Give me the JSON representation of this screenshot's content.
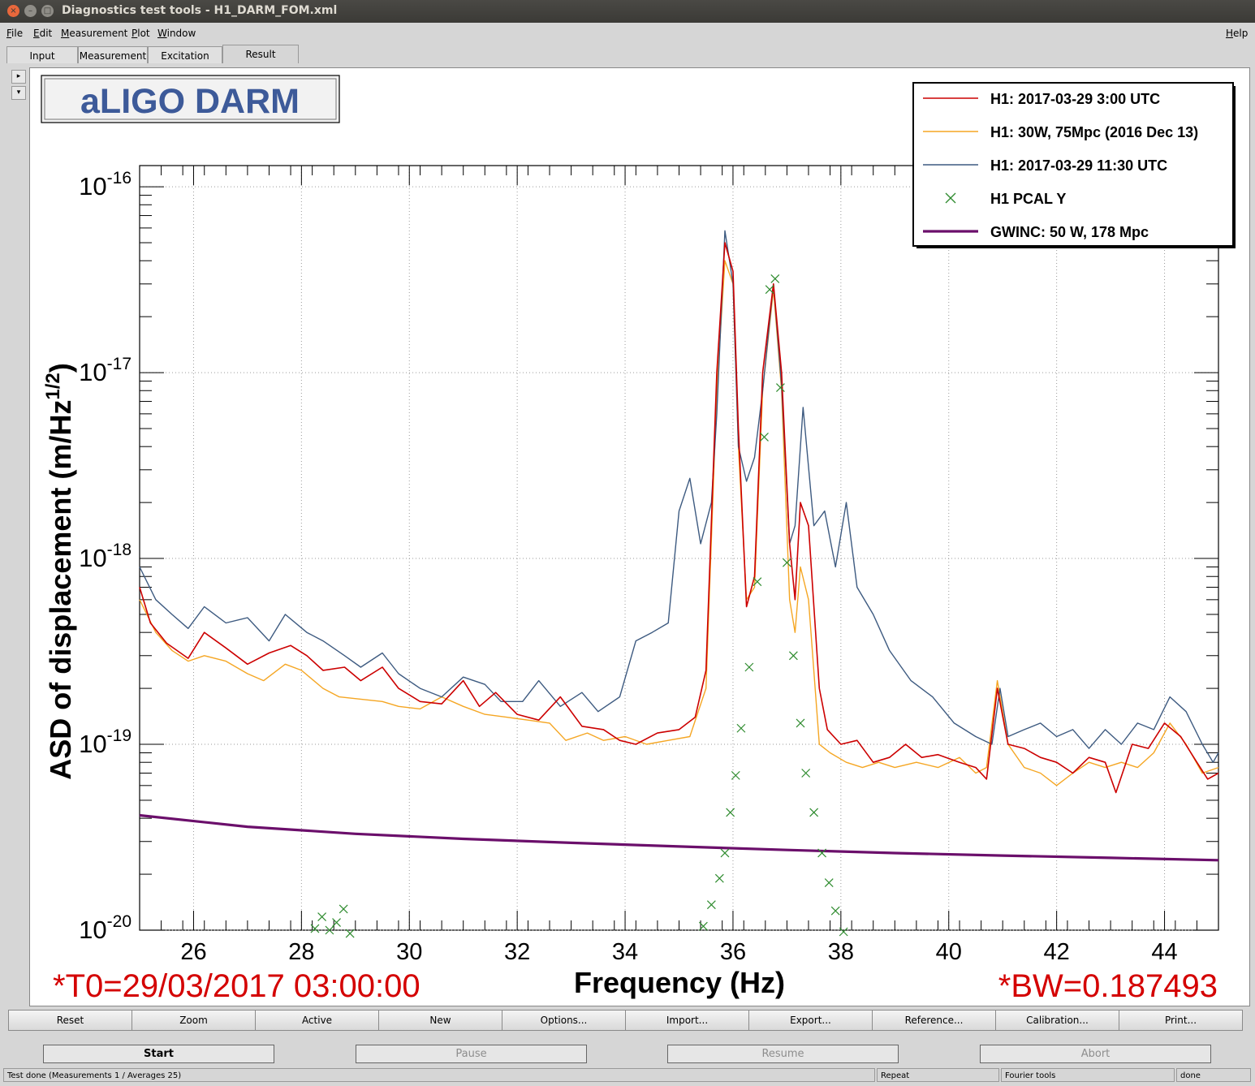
{
  "window": {
    "title": "Diagnostics test tools - H1_DARM_FOM.xml",
    "close": "×",
    "minimize": "–",
    "maximize": "□"
  },
  "menu": {
    "file": "File",
    "edit": "Edit",
    "measurement": "Measurement",
    "plot": "Plot",
    "window": "Window",
    "help": "Help"
  },
  "tabs": [
    "Input",
    "Measurement",
    "Excitation",
    "Result"
  ],
  "side_buttons": {
    "up": "▸",
    "down": "▾"
  },
  "plot": {
    "title_box": "aLIGO DARM",
    "t0": "*T0=29/03/2017 03:00:00",
    "bw": "*BW=0.187493"
  },
  "chart_data": {
    "type": "line",
    "xlabel": "Frequency (Hz)",
    "ylabel": "ASD of displacement (m/Hz",
    "ylabel_sup": "1/2",
    "ylabel_end": ")",
    "xlim": [
      25,
      45
    ],
    "ylim": [
      1e-20,
      1.3e-16
    ],
    "yscale": "log",
    "grid": true,
    "legend_position": "top-right",
    "x_ticks": [
      "26",
      "28",
      "30",
      "32",
      "34",
      "36",
      "38",
      "40",
      "42",
      "44"
    ],
    "x_tick_values": [
      26,
      28,
      30,
      32,
      34,
      36,
      38,
      40,
      42,
      44
    ],
    "y_ticks": [
      {
        "base": "10",
        "exp": "-16",
        "value": 1e-16
      },
      {
        "base": "10",
        "exp": "-17",
        "value": 1e-17
      },
      {
        "base": "10",
        "exp": "-18",
        "value": 1e-18
      },
      {
        "base": "10",
        "exp": "-19",
        "value": 1e-19
      },
      {
        "base": "10",
        "exp": "-20",
        "value": 1e-20
      }
    ],
    "series": [
      {
        "name": "H1: 2017-03-29 3:00 UTC",
        "color": "#cc0000",
        "style": "line",
        "width": 1.6,
        "points": [
          [
            25,
            7e-19
          ],
          [
            25.2,
            4.5e-19
          ],
          [
            25.5,
            3.5e-19
          ],
          [
            25.9,
            2.9e-19
          ],
          [
            26.2,
            4e-19
          ],
          [
            26.6,
            3.3e-19
          ],
          [
            27.0,
            2.7e-19
          ],
          [
            27.4,
            3.1e-19
          ],
          [
            27.8,
            3.4e-19
          ],
          [
            28.1,
            3e-19
          ],
          [
            28.4,
            2.5e-19
          ],
          [
            28.8,
            2.6e-19
          ],
          [
            29.1,
            2.2e-19
          ],
          [
            29.5,
            2.6e-19
          ],
          [
            29.8,
            2e-19
          ],
          [
            30.2,
            1.7e-19
          ],
          [
            30.6,
            1.65e-19
          ],
          [
            31.0,
            2.2e-19
          ],
          [
            31.3,
            1.6e-19
          ],
          [
            31.6,
            1.9e-19
          ],
          [
            32.0,
            1.45e-19
          ],
          [
            32.4,
            1.35e-19
          ],
          [
            32.8,
            1.8e-19
          ],
          [
            33.2,
            1.25e-19
          ],
          [
            33.6,
            1.2e-19
          ],
          [
            33.9,
            1.05e-19
          ],
          [
            34.2,
            1e-19
          ],
          [
            34.6,
            1.15e-19
          ],
          [
            35.0,
            1.2e-19
          ],
          [
            35.3,
            1.4e-19
          ],
          [
            35.5,
            2.5e-19
          ],
          [
            35.7,
            1e-17
          ],
          [
            35.85,
            5e-17
          ],
          [
            36.0,
            3.5e-17
          ],
          [
            36.1,
            5e-18
          ],
          [
            36.25,
            5.5e-19
          ],
          [
            36.4,
            8e-19
          ],
          [
            36.55,
            1e-17
          ],
          [
            36.75,
            3e-17
          ],
          [
            36.9,
            1e-17
          ],
          [
            37.05,
            1.2e-18
          ],
          [
            37.15,
            6e-19
          ],
          [
            37.25,
            2e-18
          ],
          [
            37.4,
            1.5e-18
          ],
          [
            37.6,
            2e-19
          ],
          [
            37.75,
            1.2e-19
          ],
          [
            38.0,
            1e-19
          ],
          [
            38.3,
            1.05e-19
          ],
          [
            38.6,
            8e-20
          ],
          [
            38.9,
            8.5e-20
          ],
          [
            39.2,
            1e-19
          ],
          [
            39.5,
            8.5e-20
          ],
          [
            39.8,
            8.8e-20
          ],
          [
            40.2,
            8e-20
          ],
          [
            40.5,
            7.5e-20
          ],
          [
            40.7,
            6.5e-20
          ],
          [
            40.9,
            2e-19
          ],
          [
            41.1,
            1e-19
          ],
          [
            41.4,
            9.5e-20
          ],
          [
            41.7,
            8.5e-20
          ],
          [
            42.0,
            8e-20
          ],
          [
            42.3,
            7e-20
          ],
          [
            42.6,
            8.5e-20
          ],
          [
            42.9,
            8e-20
          ],
          [
            43.1,
            5.5e-20
          ],
          [
            43.4,
            1e-19
          ],
          [
            43.7,
            9.5e-20
          ],
          [
            44.0,
            1.3e-19
          ],
          [
            44.3,
            1.1e-19
          ],
          [
            44.6,
            8e-20
          ],
          [
            44.8,
            6.5e-20
          ],
          [
            45.0,
            7e-20
          ]
        ]
      },
      {
        "name": "H1: 30W, 75Mpc (2016 Dec 13)",
        "color": "#f5a623",
        "style": "line",
        "width": 1.4,
        "points": [
          [
            25,
            6e-19
          ],
          [
            25.3,
            4e-19
          ],
          [
            25.6,
            3.2e-19
          ],
          [
            25.9,
            2.8e-19
          ],
          [
            26.2,
            3e-19
          ],
          [
            26.6,
            2.8e-19
          ],
          [
            27.0,
            2.4e-19
          ],
          [
            27.3,
            2.2e-19
          ],
          [
            27.7,
            2.7e-19
          ],
          [
            28.0,
            2.5e-19
          ],
          [
            28.4,
            2e-19
          ],
          [
            28.7,
            1.8e-19
          ],
          [
            29.1,
            1.75e-19
          ],
          [
            29.5,
            1.7e-19
          ],
          [
            29.8,
            1.6e-19
          ],
          [
            30.2,
            1.55e-19
          ],
          [
            30.6,
            1.8e-19
          ],
          [
            31.0,
            1.6e-19
          ],
          [
            31.4,
            1.45e-19
          ],
          [
            31.8,
            1.4e-19
          ],
          [
            32.2,
            1.35e-19
          ],
          [
            32.6,
            1.3e-19
          ],
          [
            32.9,
            1.05e-19
          ],
          [
            33.3,
            1.15e-19
          ],
          [
            33.6,
            1.05e-19
          ],
          [
            34.0,
            1.1e-19
          ],
          [
            34.4,
            1e-19
          ],
          [
            34.8,
            1.05e-19
          ],
          [
            35.2,
            1.1e-19
          ],
          [
            35.5,
            2e-19
          ],
          [
            35.7,
            8e-18
          ],
          [
            35.85,
            4e-17
          ],
          [
            36.0,
            3e-17
          ],
          [
            36.1,
            4e-18
          ],
          [
            36.25,
            6e-19
          ],
          [
            36.4,
            7e-19
          ],
          [
            36.55,
            8e-18
          ],
          [
            36.75,
            2.8e-17
          ],
          [
            36.9,
            8e-18
          ],
          [
            37.05,
            6e-19
          ],
          [
            37.15,
            4e-19
          ],
          [
            37.25,
            9e-19
          ],
          [
            37.4,
            6e-19
          ],
          [
            37.6,
            1e-19
          ],
          [
            37.8,
            9e-20
          ],
          [
            38.1,
            8e-20
          ],
          [
            38.4,
            7.5e-20
          ],
          [
            38.7,
            8e-20
          ],
          [
            39.0,
            7.5e-20
          ],
          [
            39.4,
            8e-20
          ],
          [
            39.8,
            7.5e-20
          ],
          [
            40.2,
            8.5e-20
          ],
          [
            40.5,
            7e-20
          ],
          [
            40.7,
            7.5e-20
          ],
          [
            40.9,
            2.2e-19
          ],
          [
            41.1,
            1e-19
          ],
          [
            41.4,
            7.5e-20
          ],
          [
            41.7,
            7e-20
          ],
          [
            42.0,
            6e-20
          ],
          [
            42.3,
            7e-20
          ],
          [
            42.6,
            8e-20
          ],
          [
            42.9,
            7.5e-20
          ],
          [
            43.2,
            8e-20
          ],
          [
            43.5,
            7.5e-20
          ],
          [
            43.8,
            9e-20
          ],
          [
            44.1,
            1.3e-19
          ],
          [
            44.4,
            1e-19
          ],
          [
            44.7,
            7e-20
          ],
          [
            45.0,
            7.5e-20
          ]
        ]
      },
      {
        "name": "H1: 2017-03-29 11:30 UTC",
        "color": "#3d5a80",
        "style": "line",
        "width": 1.4,
        "points": [
          [
            25,
            9e-19
          ],
          [
            25.3,
            6e-19
          ],
          [
            25.6,
            5e-19
          ],
          [
            25.9,
            4.2e-19
          ],
          [
            26.2,
            5.5e-19
          ],
          [
            26.6,
            4.5e-19
          ],
          [
            27.0,
            4.8e-19
          ],
          [
            27.4,
            3.6e-19
          ],
          [
            27.7,
            5e-19
          ],
          [
            28.1,
            4e-19
          ],
          [
            28.4,
            3.6e-19
          ],
          [
            28.8,
            3e-19
          ],
          [
            29.1,
            2.6e-19
          ],
          [
            29.5,
            3.1e-19
          ],
          [
            29.8,
            2.4e-19
          ],
          [
            30.2,
            2e-19
          ],
          [
            30.6,
            1.8e-19
          ],
          [
            31.0,
            2.3e-19
          ],
          [
            31.4,
            2.1e-19
          ],
          [
            31.7,
            1.7e-19
          ],
          [
            32.1,
            1.7e-19
          ],
          [
            32.4,
            2.2e-19
          ],
          [
            32.8,
            1.6e-19
          ],
          [
            33.2,
            1.9e-19
          ],
          [
            33.5,
            1.5e-19
          ],
          [
            33.9,
            1.8e-19
          ],
          [
            34.2,
            3.6e-19
          ],
          [
            34.5,
            4e-19
          ],
          [
            34.8,
            4.5e-19
          ],
          [
            35.0,
            1.8e-18
          ],
          [
            35.2,
            2.7e-18
          ],
          [
            35.4,
            1.2e-18
          ],
          [
            35.6,
            2e-18
          ],
          [
            35.7,
            6e-18
          ],
          [
            35.85,
            5.8e-17
          ],
          [
            36.0,
            3e-17
          ],
          [
            36.1,
            4e-18
          ],
          [
            36.25,
            2.6e-18
          ],
          [
            36.4,
            3.5e-18
          ],
          [
            36.55,
            8e-18
          ],
          [
            36.75,
            3e-17
          ],
          [
            36.9,
            8.5e-18
          ],
          [
            37.05,
            1.2e-18
          ],
          [
            37.15,
            1.5e-18
          ],
          [
            37.3,
            6.5e-18
          ],
          [
            37.5,
            1.5e-18
          ],
          [
            37.7,
            1.8e-18
          ],
          [
            37.9,
            9e-19
          ],
          [
            38.1,
            2e-18
          ],
          [
            38.3,
            7e-19
          ],
          [
            38.6,
            5e-19
          ],
          [
            38.9,
            3.2e-19
          ],
          [
            39.3,
            2.2e-19
          ],
          [
            39.7,
            1.8e-19
          ],
          [
            40.1,
            1.3e-19
          ],
          [
            40.5,
            1.1e-19
          ],
          [
            40.8,
            1e-19
          ],
          [
            40.95,
            2e-19
          ],
          [
            41.1,
            1.1e-19
          ],
          [
            41.4,
            1.2e-19
          ],
          [
            41.7,
            1.3e-19
          ],
          [
            42.0,
            1.1e-19
          ],
          [
            42.3,
            1.2e-19
          ],
          [
            42.6,
            9.5e-20
          ],
          [
            42.9,
            1.2e-19
          ],
          [
            43.2,
            1e-19
          ],
          [
            43.5,
            1.3e-19
          ],
          [
            43.8,
            1.2e-19
          ],
          [
            44.1,
            1.8e-19
          ],
          [
            44.4,
            1.5e-19
          ],
          [
            44.7,
            1e-19
          ],
          [
            44.9,
            8e-20
          ],
          [
            45.0,
            9e-20
          ]
        ]
      },
      {
        "name": "H1 PCAL Y",
        "color": "#2e8b2e",
        "style": "marker",
        "points": [
          [
            28.25,
            1.02e-20
          ],
          [
            28.38,
            1.18e-20
          ],
          [
            28.52,
            1e-20
          ],
          [
            28.65,
            1.1e-20
          ],
          [
            28.78,
            1.3e-20
          ],
          [
            28.9,
            9.6e-21
          ],
          [
            35.45,
            1.05e-20
          ],
          [
            35.6,
            1.37e-20
          ],
          [
            35.75,
            1.9e-20
          ],
          [
            35.85,
            2.6e-20
          ],
          [
            35.95,
            4.3e-20
          ],
          [
            36.05,
            6.8e-20
          ],
          [
            36.15,
            1.22e-19
          ],
          [
            36.3,
            2.6e-19
          ],
          [
            36.45,
            7.5e-19
          ],
          [
            36.58,
            4.5e-18
          ],
          [
            36.68,
            2.8e-17
          ],
          [
            36.78,
            3.2e-17
          ],
          [
            36.88,
            8.3e-18
          ],
          [
            37.0,
            9.5e-19
          ],
          [
            37.12,
            3e-19
          ],
          [
            37.25,
            1.3e-19
          ],
          [
            37.35,
            7e-20
          ],
          [
            37.5,
            4.3e-20
          ],
          [
            37.65,
            2.6e-20
          ],
          [
            37.78,
            1.8e-20
          ],
          [
            37.9,
            1.27e-20
          ],
          [
            38.05,
            9.8e-21
          ]
        ]
      },
      {
        "name": "GWINC: 50 W, 178 Mpc",
        "color": "#6b0f6b",
        "style": "line",
        "width": 3.2,
        "points": [
          [
            25,
            4.15e-20
          ],
          [
            27,
            3.6e-20
          ],
          [
            29,
            3.3e-20
          ],
          [
            31,
            3.1e-20
          ],
          [
            33,
            2.95e-20
          ],
          [
            35,
            2.82e-20
          ],
          [
            37,
            2.7e-20
          ],
          [
            39,
            2.6e-20
          ],
          [
            41,
            2.52e-20
          ],
          [
            43,
            2.45e-20
          ],
          [
            45,
            2.38e-20
          ]
        ]
      }
    ]
  },
  "plot_buttons": [
    "Reset",
    "Zoom",
    "Active",
    "New",
    "Options...",
    "Import...",
    "Export...",
    "Reference...",
    "Calibration...",
    "Print..."
  ],
  "main_buttons": {
    "start": "Start",
    "pause": "Pause",
    "resume": "Resume",
    "abort": "Abort"
  },
  "status": {
    "message": "Test done (Measurements 1 / Averages 25)",
    "mode": "Repeat",
    "tool": "Fourier tools",
    "state": "done"
  }
}
